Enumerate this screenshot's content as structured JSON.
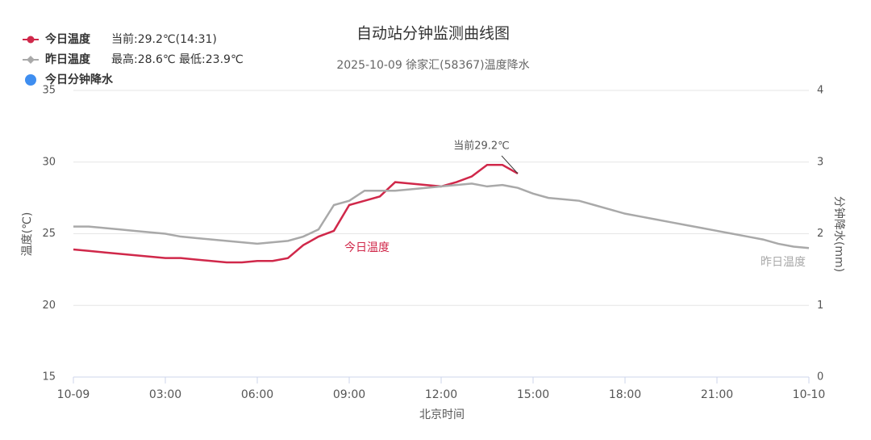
{
  "chart_data": {
    "type": "line",
    "title": "自动站分钟监测曲线图",
    "subtitle": "2025-10-09 徐家汇(58367)温度降水",
    "x_label": "北京时间",
    "y_label": "温度(℃)",
    "y2_label": "分钟降水(mm)",
    "x": [
      0,
      0.5,
      1,
      1.5,
      2,
      2.5,
      3,
      3.5,
      4,
      4.5,
      5,
      5.5,
      6,
      6.5,
      7,
      7.5,
      8,
      8.5,
      9,
      9.5,
      10,
      10.5,
      11,
      11.5,
      12,
      12.5,
      13,
      13.5,
      14,
      14.5,
      15,
      15.5,
      16,
      16.5,
      17,
      17.5,
      18,
      18.5,
      19,
      19.5,
      20,
      20.5,
      21,
      21.5,
      22,
      22.5,
      23,
      23.5,
      24
    ],
    "series": [
      {
        "name": "今日温度",
        "detail": "当前:29.2℃(14:31)",
        "color": "#d0284a",
        "marker": "circle",
        "values": [
          23.9,
          23.8,
          23.7,
          23.6,
          23.5,
          23.4,
          23.3,
          23.3,
          23.2,
          23.1,
          23.0,
          23.0,
          23.1,
          23.1,
          23.3,
          24.2,
          24.8,
          25.2,
          27.0,
          27.3,
          27.6,
          28.6,
          28.5,
          28.4,
          28.3,
          28.6,
          29.0,
          29.8,
          29.8,
          29.2,
          null,
          null,
          null,
          null,
          null,
          null,
          null,
          null,
          null,
          null,
          null,
          null,
          null,
          null,
          null,
          null,
          null,
          null,
          null
        ]
      },
      {
        "name": "昨日温度",
        "detail": "最高:28.6℃ 最低:23.9℃",
        "color": "#a9a9a9",
        "marker": "diamond",
        "values": [
          25.5,
          25.5,
          25.4,
          25.3,
          25.2,
          25.1,
          25.0,
          24.8,
          24.7,
          24.6,
          24.5,
          24.4,
          24.3,
          24.4,
          24.5,
          24.8,
          25.3,
          27.0,
          27.3,
          28.0,
          28.0,
          28.0,
          28.1,
          28.2,
          28.3,
          28.4,
          28.5,
          28.3,
          28.4,
          28.2,
          27.8,
          27.5,
          27.4,
          27.3,
          27.0,
          26.7,
          26.4,
          26.2,
          26.0,
          25.8,
          25.6,
          25.4,
          25.2,
          25.0,
          24.8,
          24.6,
          24.3,
          24.1,
          24.0
        ]
      },
      {
        "name": "今日分钟降水",
        "color": "#3f8ef0",
        "marker": "dot",
        "axis": "y2",
        "values": [
          null,
          null,
          null,
          null,
          null,
          null,
          null,
          null,
          null,
          null,
          null,
          null,
          null,
          null,
          null,
          null,
          null,
          null,
          null,
          null,
          null,
          null,
          null,
          null,
          null,
          null,
          null,
          null,
          null,
          null,
          null,
          null,
          null,
          null,
          null,
          null,
          null,
          null,
          null,
          null,
          null,
          null,
          null,
          null,
          null,
          null,
          null,
          null,
          null
        ]
      }
    ],
    "annotations": [
      {
        "text": "当前29.2℃",
        "x": 14.5,
        "y": 29.2
      }
    ],
    "xlim": [
      0,
      24
    ],
    "xticks": [
      {
        "value": 0,
        "label": "10-09"
      },
      {
        "value": 3,
        "label": "03:00"
      },
      {
        "value": 6,
        "label": "06:00"
      },
      {
        "value": 9,
        "label": "09:00"
      },
      {
        "value": 12,
        "label": "12:00"
      },
      {
        "value": 15,
        "label": "15:00"
      },
      {
        "value": 18,
        "label": "18:00"
      },
      {
        "value": 21,
        "label": "21:00"
      },
      {
        "value": 24,
        "label": "10-10"
      }
    ],
    "ylim": [
      15,
      35
    ],
    "yticks": [
      15,
      20,
      25,
      30,
      35
    ],
    "y2lim": [
      0,
      4
    ],
    "y2ticks": [
      0,
      1,
      2,
      3,
      4
    ],
    "grid": true
  }
}
